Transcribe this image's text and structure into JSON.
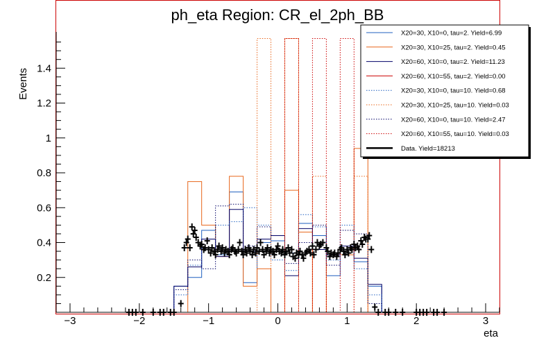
{
  "chart_data": {
    "type": "line",
    "title": "ph_eta Region: CR_el_2ph_BB",
    "xlabel": "eta",
    "ylabel": "Events",
    "xlim": [
      -3.2,
      3.2
    ],
    "ylim": [
      0,
      1.6
    ],
    "xticks": [
      -3,
      -2,
      -1,
      0,
      1,
      2,
      3
    ],
    "xtick_labels": [
      "−3",
      "−2",
      "−1",
      "0",
      "1",
      "2",
      "3"
    ],
    "yticks": [
      0.2,
      0.4,
      0.6,
      0.8,
      1.0,
      1.2,
      1.4
    ],
    "ytick_labels": [
      "0.2",
      "0.4",
      "0.6",
      "0.8",
      "1",
      "1.2",
      "1.4"
    ],
    "grid": false,
    "legend_position": "top-right",
    "bin_edges": [
      -1.5,
      -1.3,
      -1.1,
      -0.9,
      -0.7,
      -0.5,
      -0.3,
      -0.1,
      0.1,
      0.3,
      0.5,
      0.7,
      0.9,
      1.1,
      1.3,
      1.5
    ],
    "series": [
      {
        "name": "X20=30, X10=0, tau=2. Yield=6.99",
        "color": "#1f5fbf",
        "dash": "solid",
        "values": [
          0.15,
          0.2,
          0.47,
          0.33,
          0.69,
          0.17,
          0.4,
          0.41,
          0.34,
          0.51,
          0.44,
          0.21,
          0.36,
          0.29,
          0.15
        ]
      },
      {
        "name": "X20=30, X10=25, tau=2. Yield=0.45",
        "color": "#e8661a",
        "dash": "solid",
        "values": [
          0,
          0.75,
          0.5,
          0.32,
          0.78,
          0.15,
          0.25,
          0,
          0.7,
          0.46,
          0,
          0.33,
          0.33,
          0.94,
          0
        ]
      },
      {
        "name": "X20=60, X10=0, tau=2. Yield=11.23",
        "color": "#000066",
        "dash": "solid",
        "values": [
          0.15,
          0.26,
          0.42,
          0.32,
          0.59,
          0.35,
          0.42,
          0.44,
          0.21,
          0.48,
          0.36,
          0.33,
          0.38,
          0.31,
          0.16
        ]
      },
      {
        "name": "X20=60, X10=55, tau=2. Yield=0.00",
        "color": "#cc0000",
        "dash": "solid",
        "values": [
          0,
          0,
          0,
          0,
          0,
          0,
          0,
          0,
          0,
          0,
          0,
          0,
          0,
          0,
          0
        ]
      },
      {
        "name": "X20=30, X10=0, tau=10. Yield=0.68",
        "color": "#1f5fbf",
        "dash": "dotted",
        "values": [
          0.1,
          0.27,
          0.37,
          0.5,
          0.52,
          0.6,
          0.5,
          0.3,
          0.24,
          0.56,
          0.49,
          0.3,
          0.5,
          0.25,
          0.1
        ]
      },
      {
        "name": "X20=30, X10=25, tau=10. Yield=0.03",
        "color": "#e8661a",
        "dash": "dotted",
        "values": [
          0,
          0,
          0,
          0,
          0,
          0,
          1.57,
          0,
          1.57,
          0,
          0.78,
          0,
          0,
          0.78,
          0
        ]
      },
      {
        "name": "X20=60, X10=0, tau=10. Yield=2.47",
        "color": "#000066",
        "dash": "dotted",
        "values": [
          0.13,
          0.3,
          0.25,
          0.61,
          0.62,
          0.38,
          0.49,
          0.44,
          0.28,
          0.4,
          0.5,
          0.27,
          0.47,
          0.45,
          0.05
        ]
      },
      {
        "name": "X20=60, X10=55, tau=10. Yield=0.03",
        "color": "#cc0000",
        "dash": "dotted",
        "values": [
          0,
          0,
          0,
          0,
          0,
          0,
          0,
          0,
          1.57,
          0,
          1.57,
          0,
          1.57,
          0,
          0
        ]
      },
      {
        "name": "Data. Yield=18213",
        "color": "#000000",
        "dash": "data",
        "points": [
          [
            -2.15,
            0.0
          ],
          [
            -2.1,
            0.0
          ],
          [
            -2.05,
            0.0
          ],
          [
            -1.95,
            0.0
          ],
          [
            -1.8,
            0.0
          ],
          [
            -1.7,
            0.0
          ],
          [
            -1.65,
            0.0
          ],
          [
            -1.55,
            0.0
          ],
          [
            -1.5,
            0.0
          ],
          [
            -1.4,
            0.05
          ],
          [
            -1.35,
            0.37
          ],
          [
            -1.32,
            0.4
          ],
          [
            -1.3,
            0.42
          ],
          [
            -1.27,
            0.37
          ],
          [
            -1.24,
            0.49
          ],
          [
            -1.22,
            0.45
          ],
          [
            -1.2,
            0.47
          ],
          [
            -1.18,
            0.43
          ],
          [
            -1.15,
            0.4
          ],
          [
            -1.12,
            0.38
          ],
          [
            -1.1,
            0.39
          ],
          [
            -1.07,
            0.36
          ],
          [
            -1.05,
            0.37
          ],
          [
            -1.02,
            0.41
          ],
          [
            -1.0,
            0.36
          ],
          [
            -0.97,
            0.34
          ],
          [
            -0.95,
            0.37
          ],
          [
            -0.92,
            0.35
          ],
          [
            -0.9,
            0.33
          ],
          [
            -0.87,
            0.36
          ],
          [
            -0.85,
            0.38
          ],
          [
            -0.82,
            0.35
          ],
          [
            -0.8,
            0.37
          ],
          [
            -0.77,
            0.34
          ],
          [
            -0.75,
            0.36
          ],
          [
            -0.72,
            0.35
          ],
          [
            -0.7,
            0.33
          ],
          [
            -0.67,
            0.36
          ],
          [
            -0.65,
            0.37
          ],
          [
            -0.62,
            0.35
          ],
          [
            -0.6,
            0.34
          ],
          [
            -0.57,
            0.36
          ],
          [
            -0.55,
            0.4
          ],
          [
            -0.52,
            0.35
          ],
          [
            -0.5,
            0.33
          ],
          [
            -0.47,
            0.36
          ],
          [
            -0.45,
            0.34
          ],
          [
            -0.42,
            0.37
          ],
          [
            -0.4,
            0.35
          ],
          [
            -0.37,
            0.33
          ],
          [
            -0.35,
            0.36
          ],
          [
            -0.32,
            0.34
          ],
          [
            -0.3,
            0.37
          ],
          [
            -0.27,
            0.35
          ],
          [
            -0.25,
            0.4
          ],
          [
            -0.22,
            0.36
          ],
          [
            -0.2,
            0.33
          ],
          [
            -0.17,
            0.35
          ],
          [
            -0.15,
            0.37
          ],
          [
            -0.12,
            0.34
          ],
          [
            -0.1,
            0.36
          ],
          [
            -0.07,
            0.35
          ],
          [
            -0.05,
            0.33
          ],
          [
            -0.02,
            0.36
          ],
          [
            0.0,
            0.38
          ],
          [
            0.02,
            0.35
          ],
          [
            0.05,
            0.34
          ],
          [
            0.07,
            0.36
          ],
          [
            0.1,
            0.33
          ],
          [
            0.12,
            0.35
          ],
          [
            0.15,
            0.37
          ],
          [
            0.17,
            0.34
          ],
          [
            0.2,
            0.36
          ],
          [
            0.22,
            0.32
          ],
          [
            0.25,
            0.31
          ],
          [
            0.27,
            0.34
          ],
          [
            0.3,
            0.33
          ],
          [
            0.32,
            0.35
          ],
          [
            0.35,
            0.33
          ],
          [
            0.37,
            0.31
          ],
          [
            0.4,
            0.34
          ],
          [
            0.42,
            0.35
          ],
          [
            0.45,
            0.36
          ],
          [
            0.47,
            0.34
          ],
          [
            0.5,
            0.38
          ],
          [
            0.52,
            0.33
          ],
          [
            0.55,
            0.36
          ],
          [
            0.57,
            0.4
          ],
          [
            0.6,
            0.38
          ],
          [
            0.62,
            0.39
          ],
          [
            0.65,
            0.4
          ],
          [
            0.7,
            0.37
          ],
          [
            0.72,
            0.35
          ],
          [
            0.75,
            0.32
          ],
          [
            0.77,
            0.34
          ],
          [
            0.8,
            0.33
          ],
          [
            0.82,
            0.34
          ],
          [
            0.85,
            0.32
          ],
          [
            0.87,
            0.34
          ],
          [
            0.9,
            0.36
          ],
          [
            0.92,
            0.37
          ],
          [
            0.95,
            0.35
          ],
          [
            0.97,
            0.33
          ],
          [
            1.0,
            0.36
          ],
          [
            1.02,
            0.34
          ],
          [
            1.05,
            0.37
          ],
          [
            1.07,
            0.36
          ],
          [
            1.1,
            0.39
          ],
          [
            1.12,
            0.37
          ],
          [
            1.15,
            0.38
          ],
          [
            1.17,
            0.36
          ],
          [
            1.2,
            0.41
          ],
          [
            1.22,
            0.39
          ],
          [
            1.25,
            0.43
          ],
          [
            1.27,
            0.42
          ],
          [
            1.3,
            0.42
          ],
          [
            1.32,
            0.44
          ],
          [
            1.35,
            0.36
          ],
          [
            1.4,
            0.03
          ],
          [
            1.45,
            0.0
          ],
          [
            1.55,
            0.0
          ],
          [
            1.6,
            0.0
          ],
          [
            1.7,
            0.0
          ],
          [
            1.8,
            0.0
          ],
          [
            2.0,
            0.0
          ],
          [
            2.05,
            0.0
          ],
          [
            2.1,
            0.0
          ],
          [
            2.15,
            0.0
          ],
          [
            2.25,
            0.0
          ],
          [
            2.3,
            0.0
          ],
          [
            2.4,
            0.0
          ]
        ]
      }
    ]
  }
}
